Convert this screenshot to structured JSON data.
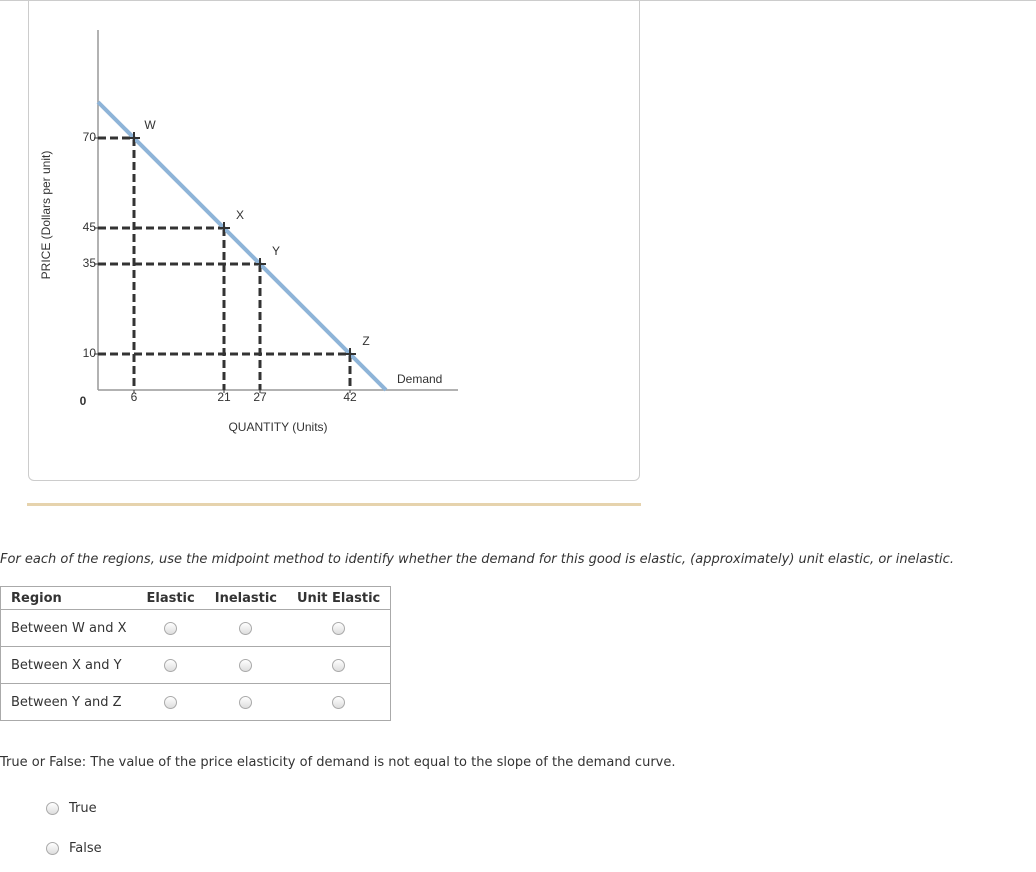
{
  "chart_data": {
    "type": "line",
    "x_label": "QUANTITY (Units)",
    "y_label": "PRICE (Dollars per unit)",
    "xlim": [
      0,
      60
    ],
    "ylim": [
      0,
      100
    ],
    "xticks": [
      6,
      21,
      27,
      42
    ],
    "yticks": [
      0,
      10,
      35,
      45,
      70
    ],
    "series": [
      {
        "name": "Demand",
        "color": "#8eb4d8",
        "x": [
          0,
          48
        ],
        "values": [
          80,
          0
        ]
      }
    ],
    "points": {
      "labels": [
        "W",
        "X",
        "Y",
        "Z"
      ],
      "x": [
        6,
        21,
        27,
        42
      ],
      "values": [
        70,
        45,
        35,
        10
      ]
    }
  },
  "question": "For each of the regions, use the midpoint method to identify whether the demand for this good is elastic, (approximately) unit elastic, or inelastic.",
  "table": {
    "headers": [
      "Region",
      "Elastic",
      "Inelastic",
      "Unit Elastic"
    ],
    "rows": [
      "Between W and X",
      "Between X and Y",
      "Between Y and Z"
    ]
  },
  "question2": "True or False: The value of the price elasticity of demand is not equal to the slope of the demand curve.",
  "options": [
    "True",
    "False"
  ]
}
